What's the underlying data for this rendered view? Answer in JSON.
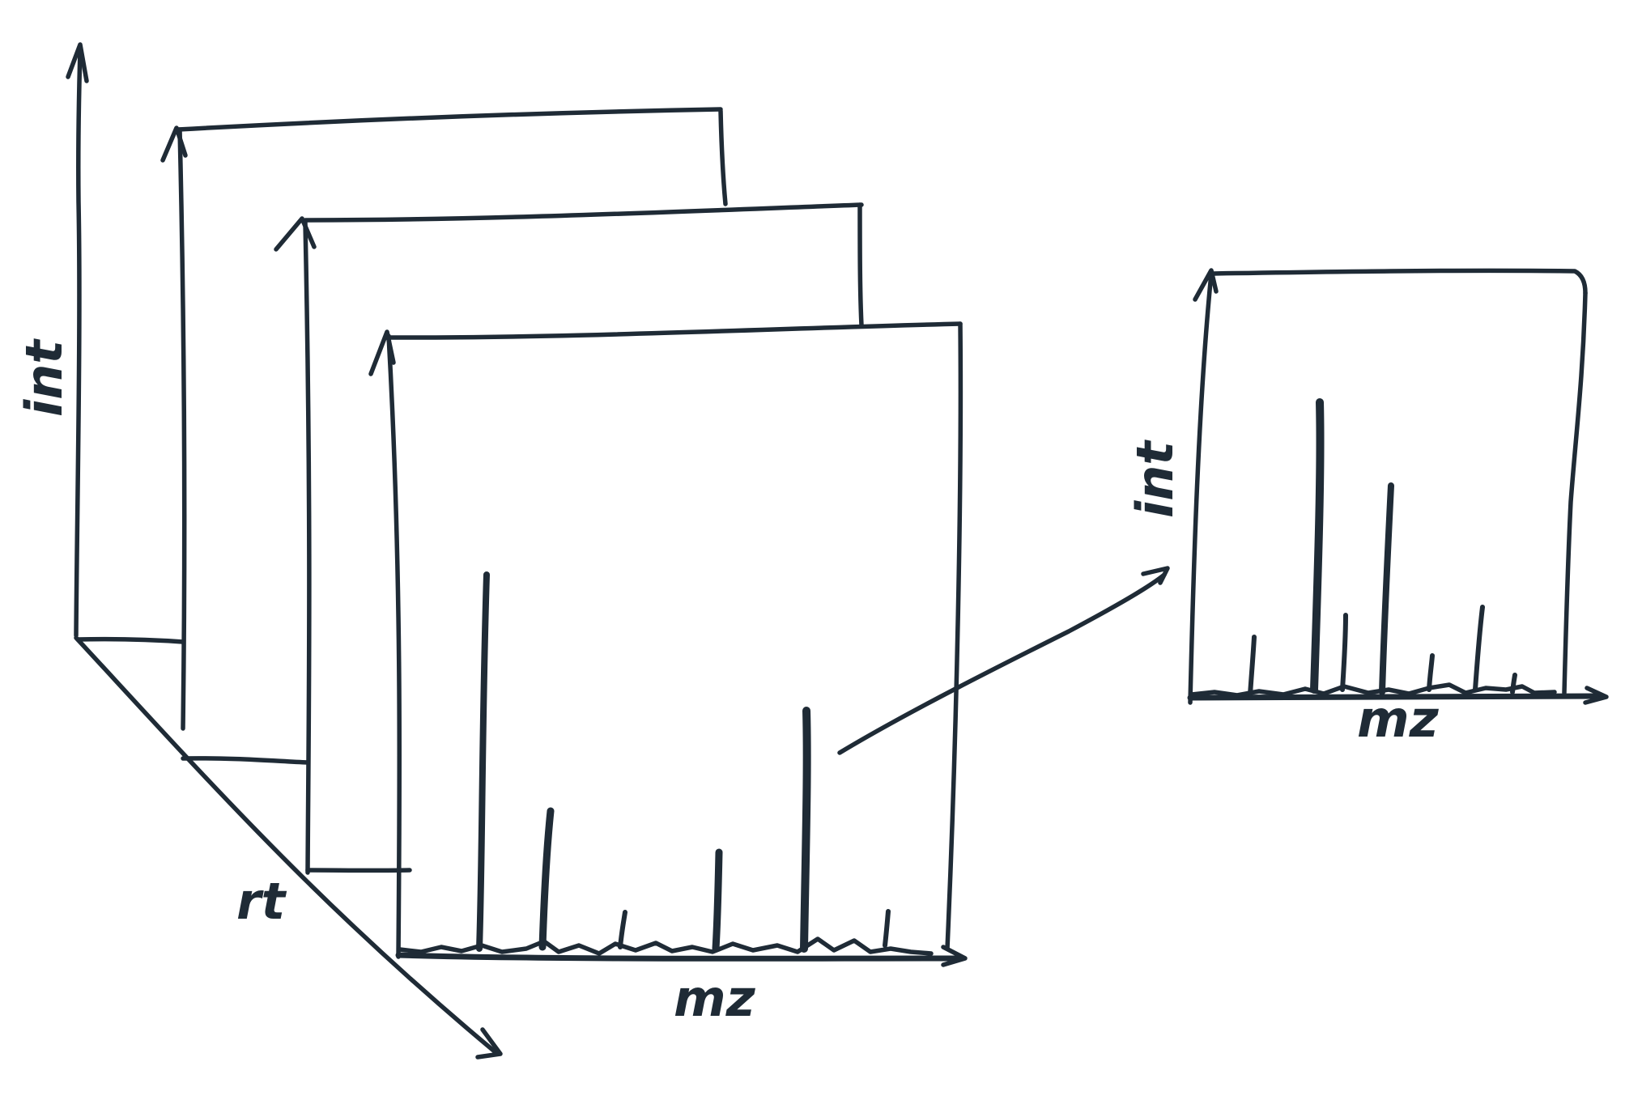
{
  "diagram": {
    "stack": {
      "y_axis_label": "int",
      "depth_axis_label": "rt",
      "x_axis_label": "mz"
    },
    "detail": {
      "y_axis_label": "int",
      "x_axis_label": "mz"
    },
    "ink_color": "#1f2b36",
    "background_color": "#ffffff"
  }
}
